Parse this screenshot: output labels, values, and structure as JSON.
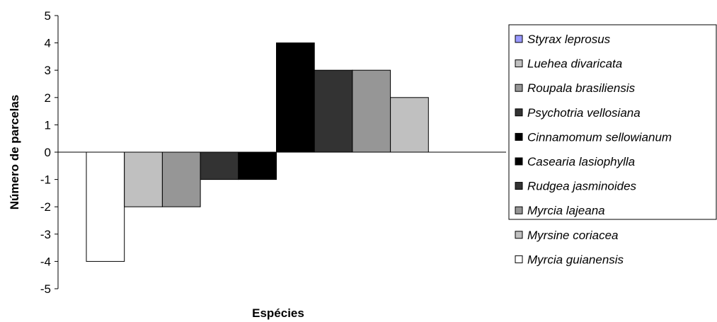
{
  "chart_data": {
    "type": "bar",
    "xlabel": "Espécies",
    "ylabel": "Número de parcelas",
    "ylim": [
      -5,
      5
    ],
    "yticks": [
      5,
      4,
      3,
      2,
      1,
      0,
      -1,
      -2,
      -3,
      -4,
      -5
    ],
    "grid": false,
    "legend_position": "right",
    "series": [
      {
        "name": "Styrax leprosus",
        "value": 0,
        "color": "#9999ff"
      },
      {
        "name": "Luehea divaricata",
        "value": 2,
        "color": "#c0c0c0"
      },
      {
        "name": "Roupala brasiliensis",
        "value": 3,
        "color": "#969696"
      },
      {
        "name": "Psychotria vellosiana",
        "value": 3,
        "color": "#333333"
      },
      {
        "name": "Cinnamomum sellowianum",
        "value": 4,
        "color": "#000000"
      },
      {
        "name": "Casearia lasiophylla",
        "value": -1,
        "color": "#000000"
      },
      {
        "name": "Rudgea jasminoides",
        "value": -1,
        "color": "#333333"
      },
      {
        "name": "Myrcia lajeana",
        "value": -2,
        "color": "#969696"
      },
      {
        "name": "Myrsine coriacea",
        "value": -2,
        "color": "#c0c0c0"
      },
      {
        "name": "Myrcia guianensis",
        "value": -4,
        "color": "#ffffff"
      }
    ]
  }
}
